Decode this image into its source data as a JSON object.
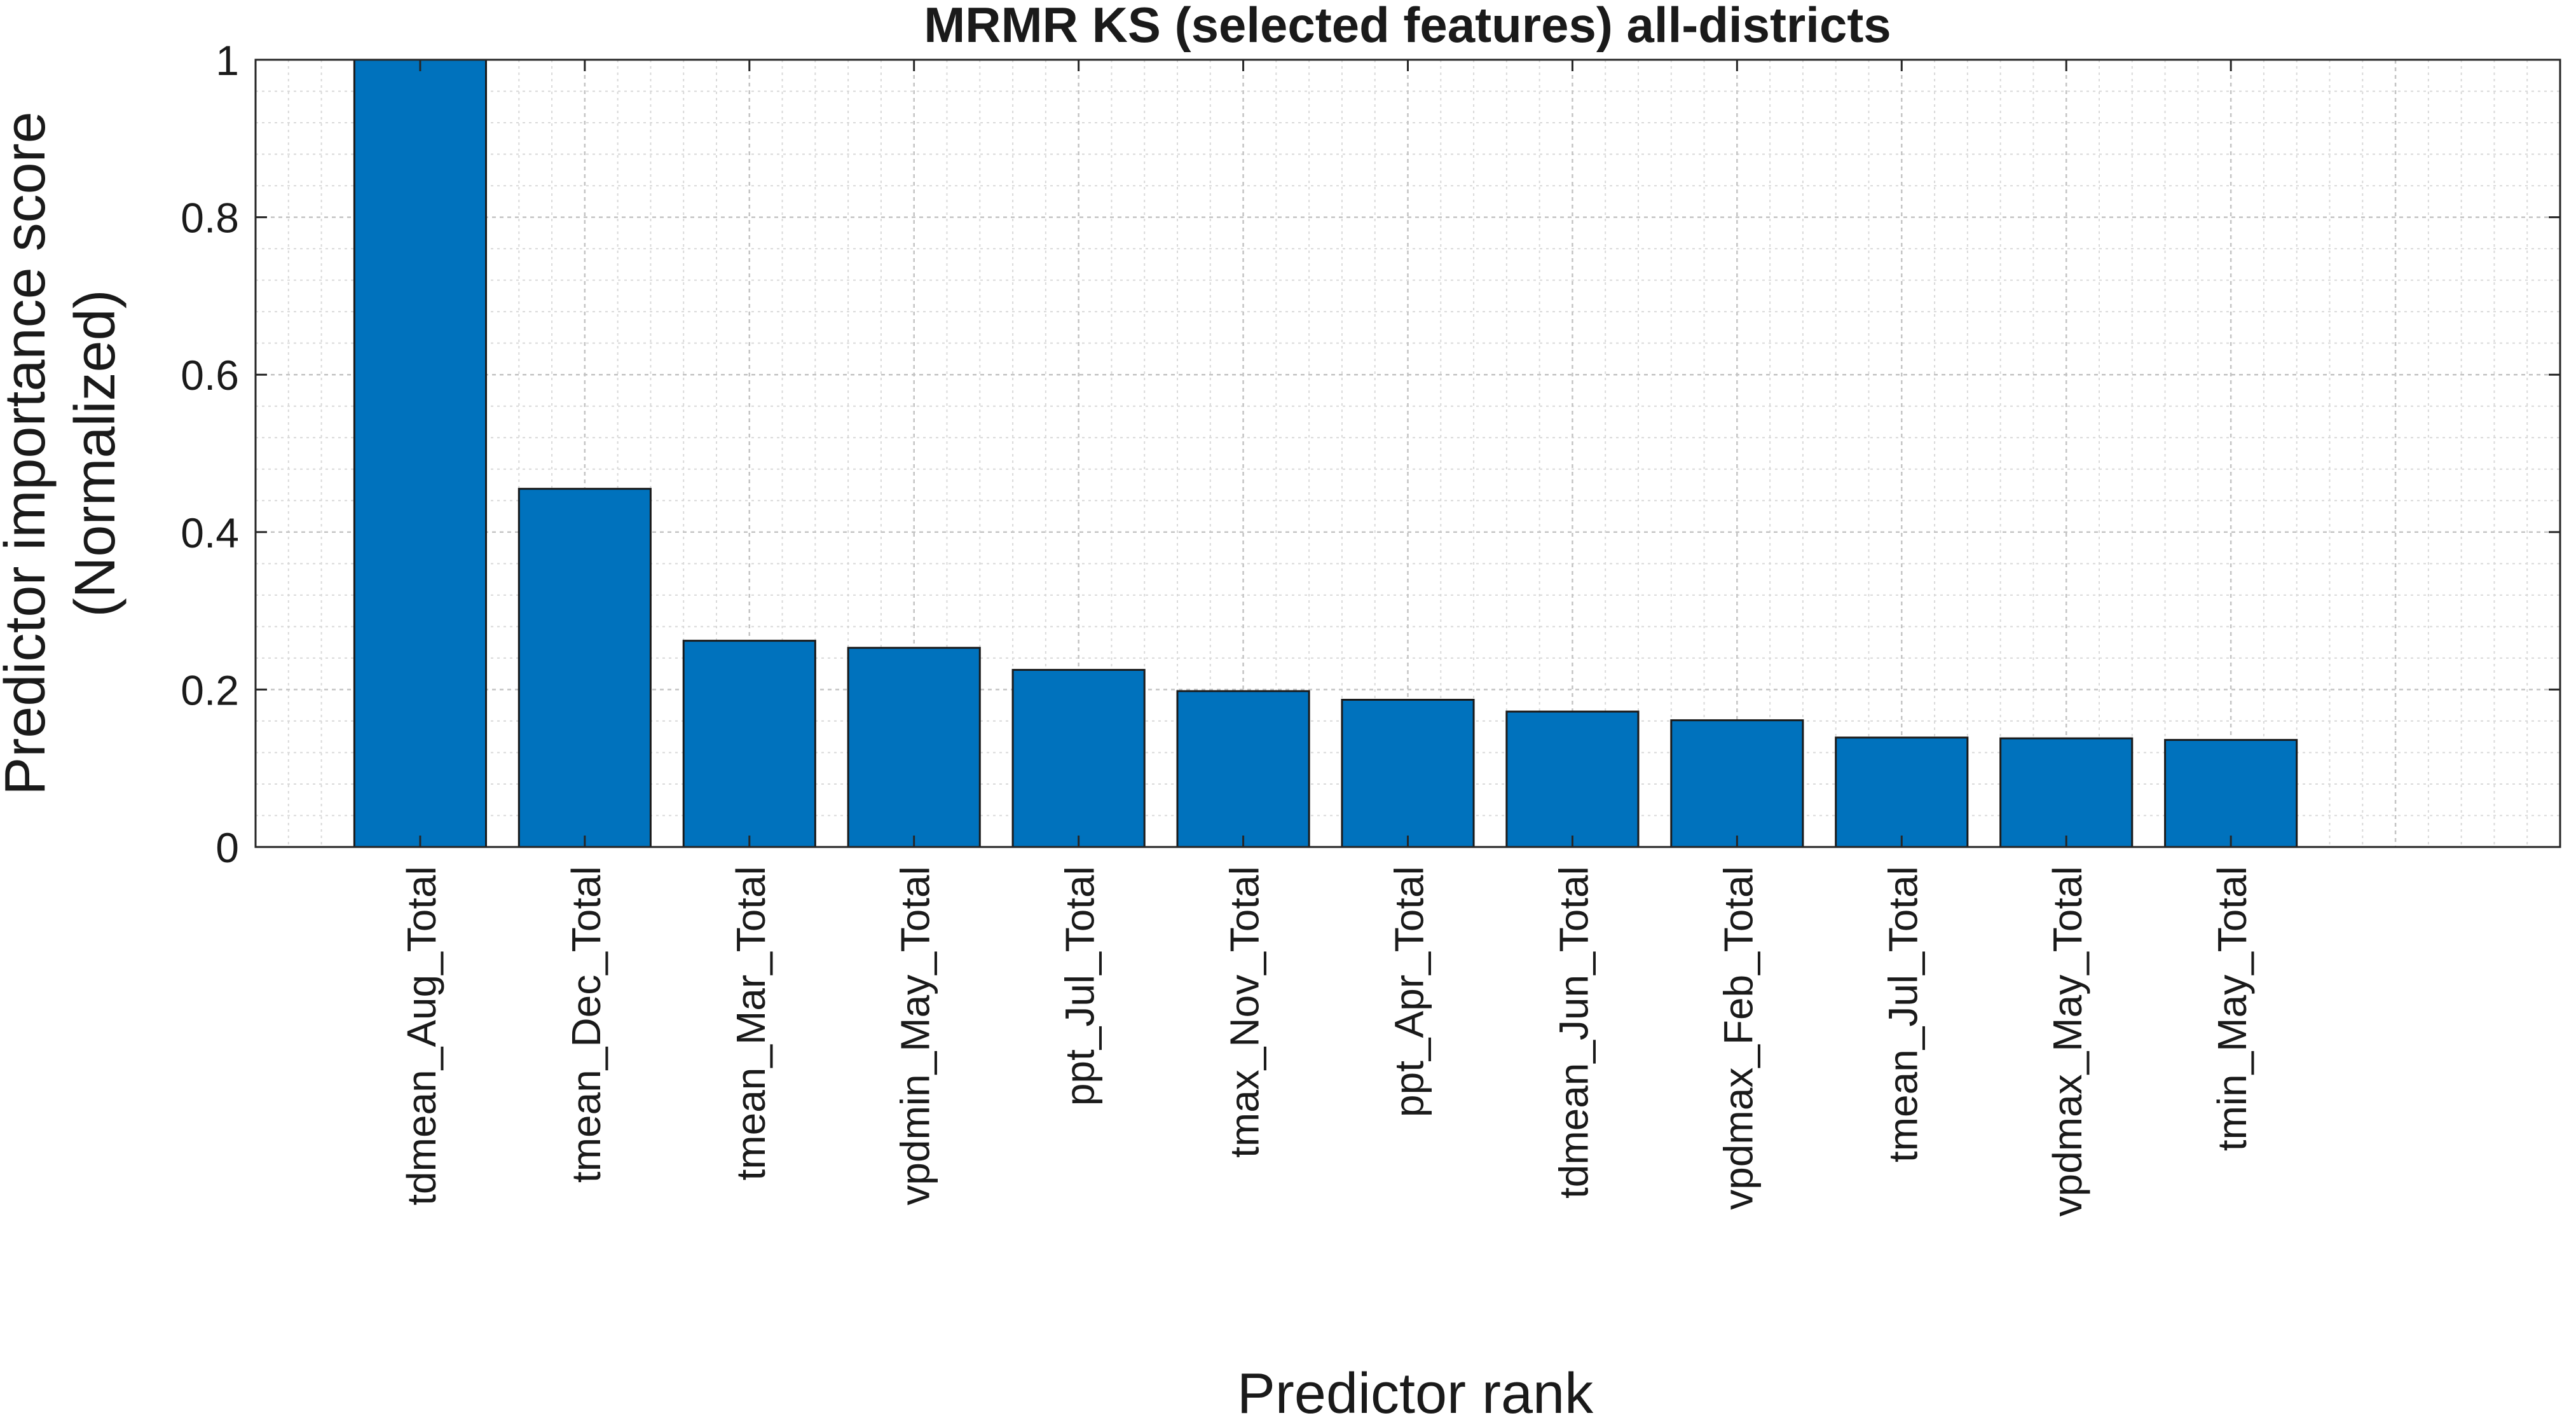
{
  "chart_data": {
    "type": "bar",
    "title": "MRMR KS (selected features) all-districts",
    "xlabel": "Predictor rank",
    "ylabel_lines": [
      "Predictor importance score",
      "(Normalized)"
    ],
    "categories": [
      "tdmean_Aug_Total",
      "tmean_Dec_Total",
      "tmean_Mar_Total",
      "vpdmin_May_Total",
      "ppt_Jul_Total",
      "tmax_Nov_Total",
      "ppt_Apr_Total",
      "tdmean_Jun_Total",
      "vpdmax_Feb_Total",
      "tmean_Jul_Total",
      "vpdmax_May_Total",
      "tmin_May_Total"
    ],
    "values": [
      1.0,
      0.455,
      0.262,
      0.253,
      0.225,
      0.198,
      0.187,
      0.172,
      0.161,
      0.139,
      0.138,
      0.136
    ],
    "ylim": [
      0,
      1
    ],
    "yticks": [
      "0",
      "0.2",
      "0.4",
      "0.6",
      "0.8",
      "1"
    ],
    "grid": true,
    "minor_grid": true,
    "bar_color": "#0072BD"
  }
}
